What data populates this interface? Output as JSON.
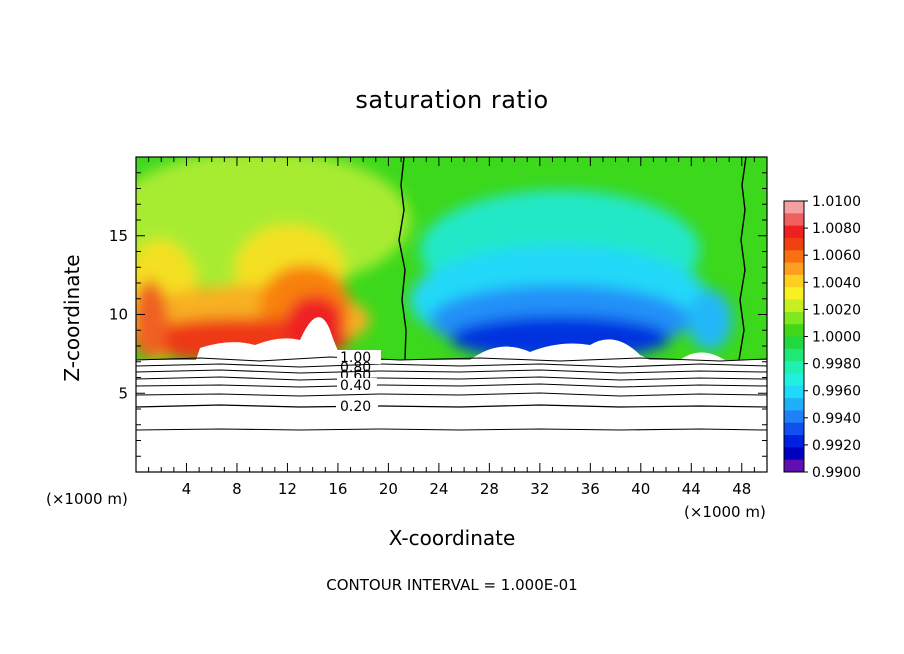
{
  "chart_data": {
    "type": "heatmap",
    "title": "saturation ratio",
    "xlabel": "X-coordinate",
    "ylabel": "Z-coordinate",
    "x_unit_label": "(×1000 m)",
    "xlim": [
      0,
      50
    ],
    "ylim": [
      0,
      20
    ],
    "x_ticks": [
      "4",
      "8",
      "12",
      "16",
      "20",
      "24",
      "28",
      "32",
      "36",
      "40",
      "44",
      "48"
    ],
    "y_ticks": [
      "5",
      "10",
      "15"
    ],
    "colorbar": {
      "labels": [
        "1.0100",
        "1.0080",
        "1.0060",
        "1.0040",
        "1.0020",
        "1.0000",
        "0.9980",
        "0.9960",
        "0.9940",
        "0.9920",
        "0.9900"
      ],
      "colors": [
        "#f5a0a0",
        "#ef6060",
        "#ee2020",
        "#f04010",
        "#f87010",
        "#fca020",
        "#fcd020",
        "#f8f020",
        "#c8f020",
        "#80e820",
        "#40d818",
        "#20d840",
        "#20e878",
        "#20f0b0",
        "#20f0e0",
        "#20d8f8",
        "#20b0f8",
        "#2080f8",
        "#1050f0",
        "#0020e0",
        "#0000c0",
        "#6010b0"
      ]
    },
    "contour_labels": [
      "1.00",
      "0.80",
      "0.60",
      "0.40",
      "0.20"
    ],
    "contour_interval_text": "CONTOUR INTERVAL = 1.000E-01"
  }
}
